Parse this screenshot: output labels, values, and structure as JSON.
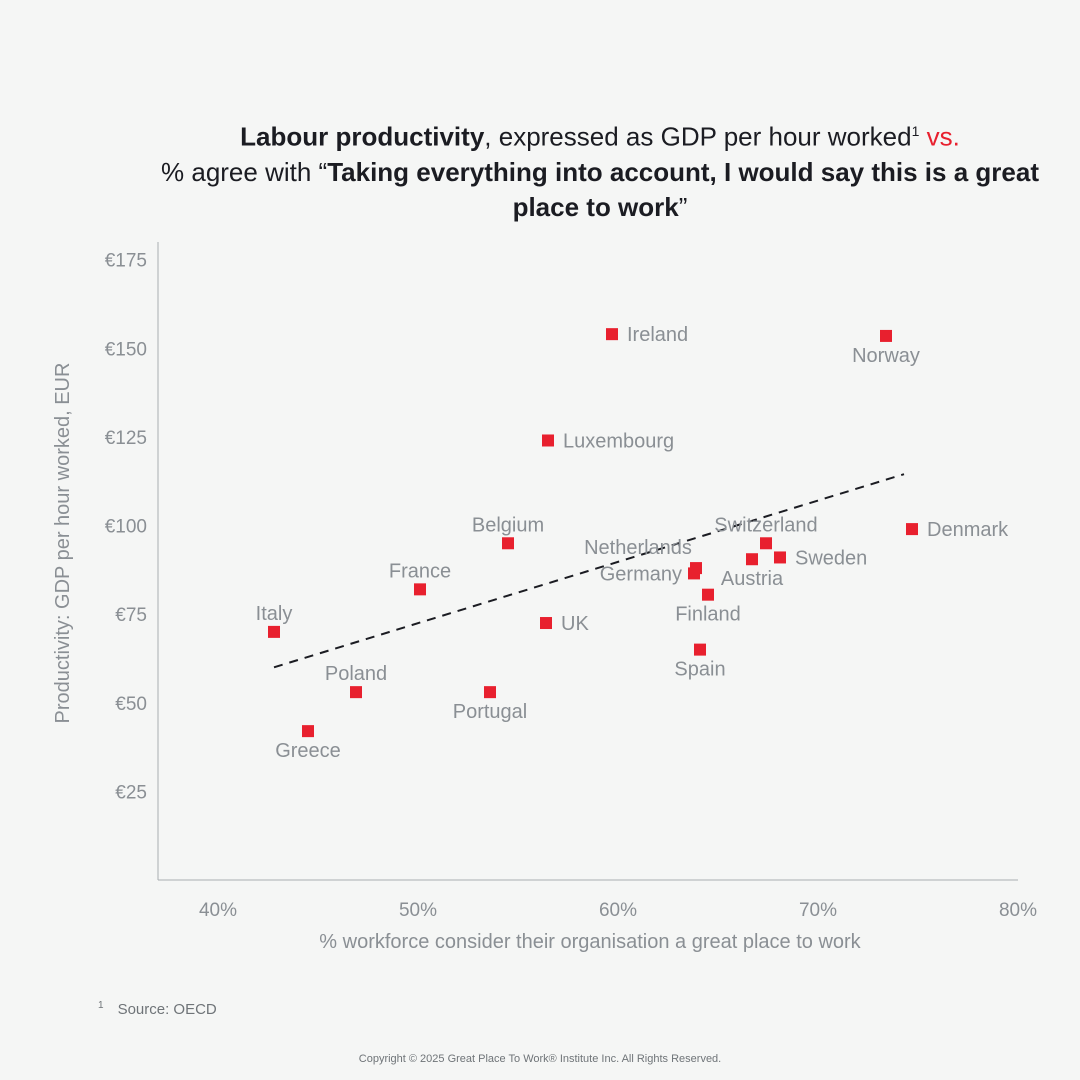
{
  "title": {
    "part1_bold": "Labour productivity",
    "part2": ", expressed as GDP per hour worked",
    "footnote_mark": "1",
    "part3_accent": " vs.",
    "part4": "% agree with “",
    "part5_bold": "Taking everything into account, I would say this is a great place to work",
    "part6": "”"
  },
  "footnote": {
    "mark": "1",
    "text": "Source: OECD"
  },
  "copyright": "Copyright © 2025 Great Place To Work® Institute Inc. All Rights Reserved.",
  "chart_data": {
    "type": "scatter",
    "xlabel": "% workforce consider their organisation a great place to work",
    "ylabel": "Productivity: GDP per hour worked, EUR",
    "xlim": [
      37,
      80
    ],
    "ylim": [
      0,
      180
    ],
    "x_ticks": [
      40,
      50,
      60,
      70,
      80
    ],
    "x_tick_labels": [
      "40%",
      "50%",
      "60%",
      "70%",
      "80%"
    ],
    "y_ticks": [
      25,
      50,
      75,
      100,
      125,
      150,
      175
    ],
    "y_tick_labels": [
      "€25",
      "€50",
      "€75",
      "€100",
      "€125",
      "€150",
      "€175"
    ],
    "marker_color": "#e8202e",
    "trendline": {
      "x": [
        42.8,
        74.3
      ],
      "y": [
        60,
        114.5
      ]
    },
    "points": [
      {
        "label": "Ireland",
        "x": 59.7,
        "y": 154,
        "label_pos": "right"
      },
      {
        "label": "Norway",
        "x": 73.4,
        "y": 153.5,
        "label_pos": "below"
      },
      {
        "label": "Luxembourg",
        "x": 56.5,
        "y": 124,
        "label_pos": "right"
      },
      {
        "label": "Denmark",
        "x": 74.7,
        "y": 99,
        "label_pos": "right"
      },
      {
        "label": "Switzerland",
        "x": 67.4,
        "y": 95,
        "label_pos": "above"
      },
      {
        "label": "Sweden",
        "x": 68.1,
        "y": 91,
        "label_pos": "right"
      },
      {
        "label": "Belgium",
        "x": 54.5,
        "y": 95,
        "label_pos": "above"
      },
      {
        "label": "Netherlands",
        "x": 63.9,
        "y": 88,
        "label_pos": "above-left"
      },
      {
        "label": "Germany",
        "x": 63.8,
        "y": 86.5,
        "label_pos": "left"
      },
      {
        "label": "Austria",
        "x": 66.7,
        "y": 90.5,
        "label_pos": "below"
      },
      {
        "label": "Finland",
        "x": 64.5,
        "y": 80.5,
        "label_pos": "below"
      },
      {
        "label": "France",
        "x": 50.1,
        "y": 82,
        "label_pos": "above"
      },
      {
        "label": "UK",
        "x": 56.4,
        "y": 72.5,
        "label_pos": "right"
      },
      {
        "label": "Italy",
        "x": 42.8,
        "y": 70,
        "label_pos": "above"
      },
      {
        "label": "Spain",
        "x": 64.1,
        "y": 65,
        "label_pos": "below"
      },
      {
        "label": "Poland",
        "x": 46.9,
        "y": 53,
        "label_pos": "above"
      },
      {
        "label": "Portugal",
        "x": 53.6,
        "y": 53,
        "label_pos": "below"
      },
      {
        "label": "Greece",
        "x": 44.5,
        "y": 42,
        "label_pos": "below"
      }
    ]
  }
}
